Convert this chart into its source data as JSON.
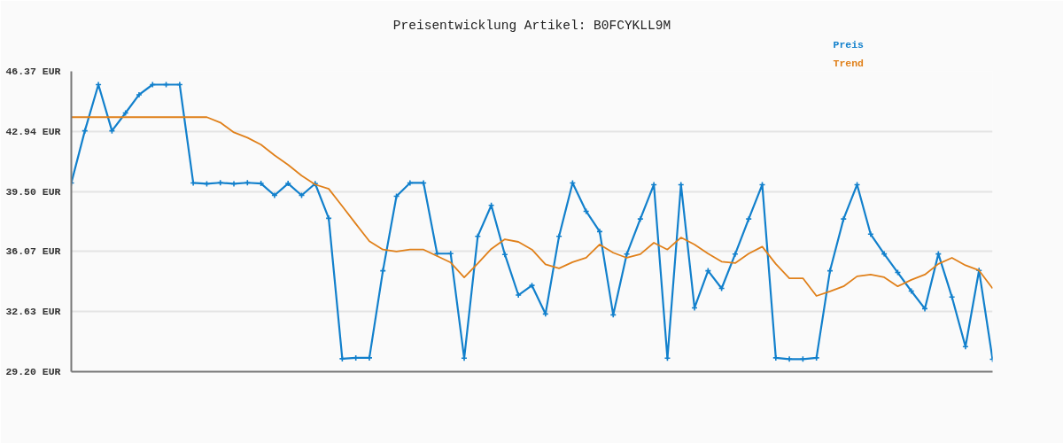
{
  "chart_data": {
    "type": "line",
    "title": "Preisentwicklung Artikel: B0FCYKLL9M",
    "categories": [
      null,
      null,
      null,
      null,
      null,
      null,
      null,
      null,
      null,
      null,
      null,
      null,
      null,
      null,
      null,
      null,
      null,
      null,
      null,
      null,
      null,
      null,
      null,
      null,
      null,
      null,
      null,
      null,
      null,
      null,
      null,
      null,
      null,
      null,
      null,
      null,
      null,
      null,
      null,
      null,
      null,
      null,
      null,
      null,
      null,
      null,
      null,
      null,
      null,
      null,
      null,
      null,
      null,
      null,
      null,
      null,
      null,
      null,
      null,
      null,
      null,
      null,
      null,
      null,
      null,
      null,
      null,
      null,
      null
    ],
    "series": [
      {
        "name": "Preis",
        "color": "#1280cc",
        "marker": "cross",
        "values": [
          39.99,
          42.97,
          45.61,
          42.97,
          43.99,
          45.03,
          45.61,
          45.61,
          45.61,
          39.99,
          39.94,
          40.0,
          39.94,
          40.0,
          39.96,
          39.28,
          39.96,
          39.28,
          39.95,
          37.97,
          29.94,
          29.99,
          29.99,
          34.97,
          39.23,
          39.99,
          39.99,
          35.95,
          35.95,
          29.97,
          36.94,
          38.71,
          35.9,
          33.58,
          34.13,
          32.5,
          36.94,
          39.99,
          38.37,
          37.21,
          32.45,
          35.92,
          37.93,
          39.89,
          29.97,
          39.89,
          32.85,
          34.97,
          33.96,
          35.92,
          37.93,
          39.89,
          29.99,
          29.92,
          29.92,
          29.99,
          34.97,
          37.93,
          39.89,
          37.06,
          35.93,
          34.87,
          33.81,
          32.8,
          35.93,
          33.47,
          30.63,
          34.99,
          29.91
        ]
      },
      {
        "name": "Trend",
        "color": "#e0801a",
        "values": [
          43.75,
          43.75,
          43.75,
          43.75,
          43.75,
          43.75,
          43.75,
          43.75,
          43.75,
          43.75,
          43.75,
          43.44,
          42.88,
          42.58,
          42.18,
          41.57,
          41.03,
          40.41,
          39.9,
          39.65,
          38.66,
          37.65,
          36.66,
          36.18,
          36.07,
          36.18,
          36.18,
          35.81,
          35.44,
          34.59,
          35.38,
          36.22,
          36.77,
          36.62,
          36.18,
          35.34,
          35.11,
          35.46,
          35.71,
          36.47,
          36.0,
          35.71,
          35.92,
          36.57,
          36.18,
          36.87,
          36.47,
          35.95,
          35.49,
          35.41,
          35.95,
          36.35,
          35.36,
          34.54,
          34.54,
          33.53,
          33.79,
          34.08,
          34.65,
          34.75,
          34.6,
          34.08,
          34.45,
          34.75,
          35.36,
          35.71,
          35.28,
          34.99,
          33.96
        ]
      }
    ],
    "ylim": [
      29.2,
      46.37
    ],
    "yticks": [
      {
        "value": 29.2,
        "label": "29.20 EUR"
      },
      {
        "value": 32.63,
        "label": "32.63 EUR"
      },
      {
        "value": 36.07,
        "label": "36.07 EUR"
      },
      {
        "value": 39.5,
        "label": "39.50 EUR"
      },
      {
        "value": 42.94,
        "label": "42.94 EUR"
      },
      {
        "value": 46.37,
        "label": "46.37 EUR"
      }
    ],
    "grid": "y",
    "tick_labels": "y"
  }
}
